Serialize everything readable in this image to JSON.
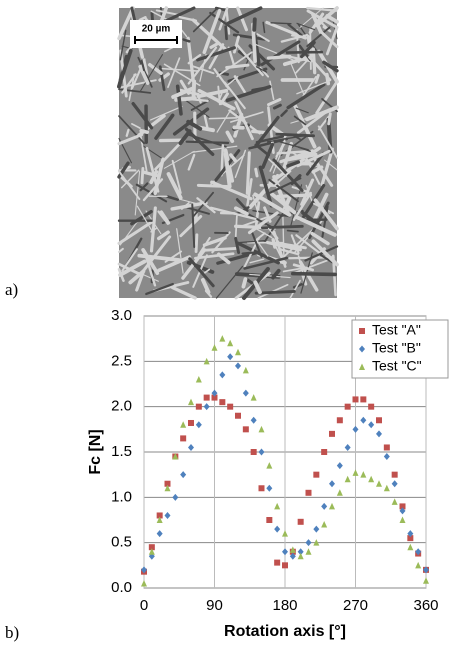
{
  "panel_labels": [
    "a)",
    "b)"
  ],
  "micrograph": {
    "scale_label": "20 µm"
  },
  "chart_data": {
    "type": "scatter",
    "xlabel": "Rotation axis [°]",
    "ylabel": "Fc [N]",
    "x": [
      0,
      10,
      20,
      30,
      40,
      50,
      60,
      70,
      80,
      90,
      100,
      110,
      120,
      130,
      140,
      150,
      160,
      170,
      180,
      190,
      200,
      210,
      220,
      230,
      240,
      250,
      260,
      270,
      280,
      290,
      300,
      310,
      320,
      330,
      340,
      350,
      360
    ],
    "series": [
      {
        "name": "Test \"A\"",
        "color": "#c0504d",
        "marker": "square",
        "values": [
          0.18,
          0.45,
          0.8,
          1.15,
          1.45,
          1.65,
          1.82,
          2.0,
          2.1,
          2.1,
          2.05,
          2.0,
          1.9,
          1.75,
          1.5,
          1.1,
          0.75,
          0.28,
          0.25,
          0.4,
          0.73,
          1.05,
          1.25,
          1.5,
          1.7,
          1.85,
          2.0,
          2.08,
          2.08,
          2.0,
          1.85,
          1.55,
          1.25,
          0.9,
          0.55,
          0.38,
          0.2
        ]
      },
      {
        "name": "Test \"B\"",
        "color": "#4f81bd",
        "marker": "diamond",
        "values": [
          0.2,
          0.35,
          0.6,
          0.8,
          1.0,
          1.25,
          1.55,
          1.8,
          2.0,
          2.15,
          2.35,
          2.55,
          2.45,
          2.15,
          1.85,
          1.5,
          1.1,
          0.65,
          0.4,
          0.35,
          0.4,
          0.5,
          0.65,
          0.9,
          1.15,
          1.35,
          1.55,
          1.75,
          1.85,
          1.8,
          1.7,
          1.45,
          1.15,
          0.85,
          0.6,
          0.4,
          0.2
        ]
      },
      {
        "name": "Test \"C\"",
        "color": "#9bbb59",
        "marker": "triangle",
        "values": [
          0.05,
          0.4,
          0.75,
          1.1,
          1.45,
          1.8,
          2.05,
          2.3,
          2.5,
          2.65,
          2.75,
          2.7,
          2.6,
          2.4,
          2.1,
          1.75,
          1.35,
          0.9,
          0.6,
          0.42,
          0.35,
          0.4,
          0.5,
          0.7,
          0.9,
          1.05,
          1.2,
          1.27,
          1.25,
          1.2,
          1.15,
          1.1,
          0.95,
          0.75,
          0.45,
          0.25,
          0.08
        ]
      }
    ],
    "xlim": [
      0,
      360
    ],
    "xticks": [
      0,
      90,
      180,
      270,
      360
    ],
    "ylim": [
      0,
      3
    ],
    "yticks": [
      {
        "value": 0,
        "label": "0.0"
      },
      {
        "value": 0.5,
        "label": "0.5"
      },
      {
        "value": 1,
        "label": "1.0"
      },
      {
        "value": 1.5,
        "label": "1.5"
      },
      {
        "value": 2,
        "label": "2.0"
      },
      {
        "value": 2.5,
        "label": "2.5"
      },
      {
        "value": 3,
        "label": "3.0"
      }
    ],
    "grid": true,
    "legend": "upper right"
  }
}
